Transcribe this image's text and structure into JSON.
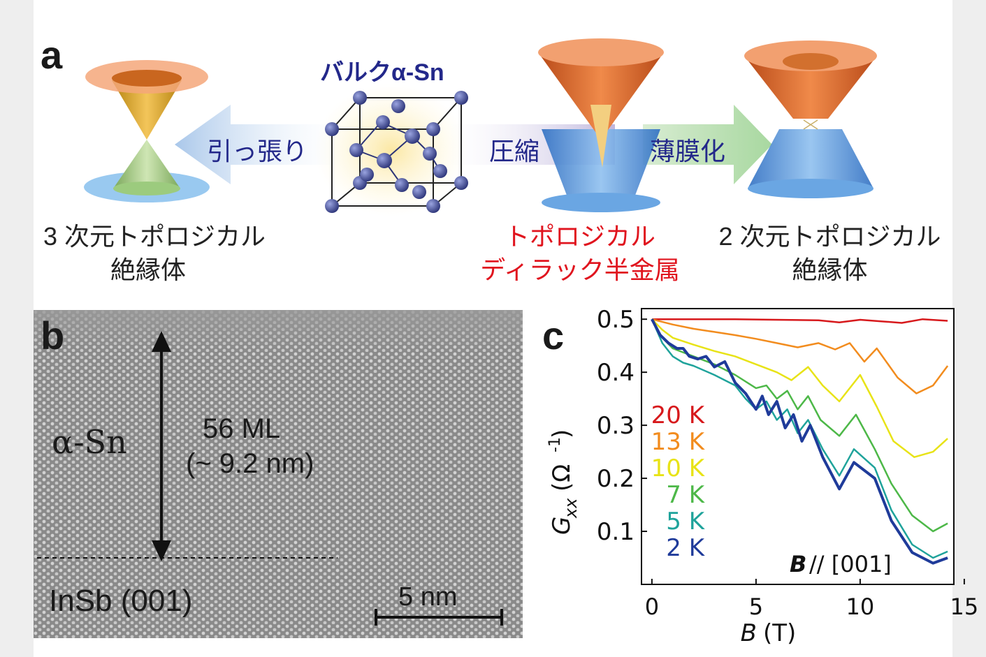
{
  "panel_a": {
    "letter": "a",
    "bulk_title": "バルクα-Sn",
    "arrow_tension": "引っ張り",
    "arrow_compression": "圧縮",
    "arrow_thinfilm": "薄膜化",
    "ti3d_line1": "3 次元トポロジカル",
    "ti3d_line2": "絶縁体",
    "dirac_line1": "トポロジカル",
    "dirac_line2": "ディラック半金属",
    "ti2d_line1": "2 次元トポロジカル",
    "ti2d_line2": "絶縁体",
    "colors": {
      "dirac_text": "#e0141e",
      "bulk_title": "#23288a",
      "arrow_text": "#23288a"
    }
  },
  "panel_b": {
    "letter": "b",
    "layer_label": "α-Sn",
    "thickness_line1": "56 ML",
    "thickness_line2": "(~ 9.2 nm)",
    "substrate_label": "InSb (001)",
    "scalebar_label": "5 nm"
  },
  "panel_c": {
    "letter": "c",
    "field_note": "// [001]",
    "field_note_symbol": "B",
    "chart_data": {
      "type": "line",
      "xlabel_symbol": "B",
      "xlabel_unit": "(T)",
      "ylabel_symbol": "G",
      "ylabel_sub": "xx",
      "ylabel_unit": "(Ω",
      "ylabel_exp": "-1",
      "ylabel_close": ")",
      "xlim": [
        -0.5,
        14.5
      ],
      "ylim": [
        0.0,
        0.52
      ],
      "xticks": [
        "0",
        "5",
        "10",
        "15"
      ],
      "yticks": [
        "0.1",
        "0.2",
        "0.3",
        "0.4",
        "0.5"
      ],
      "series": [
        {
          "name": "20 K",
          "color": "#d7191c",
          "x": [
            0,
            2,
            4,
            6,
            8,
            9,
            10,
            11,
            12,
            13,
            14.2
          ],
          "y": [
            0.5,
            0.5,
            0.5,
            0.499,
            0.498,
            0.494,
            0.499,
            0.496,
            0.493,
            0.5,
            0.497
          ]
        },
        {
          "name": "13 K",
          "color": "#f28c1e",
          "x": [
            0,
            1,
            2,
            3,
            4,
            5,
            6,
            7,
            8,
            8.8,
            9.5,
            10.2,
            10.8,
            11.8,
            12.7,
            13.5,
            14.2
          ],
          "y": [
            0.5,
            0.49,
            0.482,
            0.476,
            0.47,
            0.463,
            0.455,
            0.447,
            0.455,
            0.443,
            0.455,
            0.42,
            0.445,
            0.39,
            0.36,
            0.375,
            0.412
          ]
        },
        {
          "name": "10 K",
          "color": "#e8e317",
          "x": [
            0,
            0.5,
            1,
            2,
            3,
            4,
            5,
            6,
            6.7,
            7.5,
            8.2,
            9,
            10,
            10.8,
            11.6,
            12.6,
            13.5,
            14.2
          ],
          "y": [
            0.5,
            0.48,
            0.465,
            0.452,
            0.44,
            0.43,
            0.415,
            0.4,
            0.385,
            0.41,
            0.375,
            0.345,
            0.395,
            0.335,
            0.27,
            0.24,
            0.25,
            0.275
          ]
        },
        {
          "name": "7 K",
          "color": "#4db848",
          "x": [
            0,
            0.5,
            1,
            2,
            3,
            4,
            5,
            5.5,
            6,
            6.5,
            7,
            7.5,
            8.1,
            9,
            9.8,
            10.7,
            11.5,
            12.5,
            13.5,
            14.2
          ],
          "y": [
            0.5,
            0.465,
            0.445,
            0.43,
            0.415,
            0.395,
            0.37,
            0.375,
            0.35,
            0.365,
            0.33,
            0.355,
            0.31,
            0.28,
            0.32,
            0.255,
            0.19,
            0.13,
            0.1,
            0.115
          ]
        },
        {
          "name": "5 K",
          "color": "#1fa39b",
          "x": [
            0,
            0.5,
            1,
            1.5,
            2,
            3,
            4,
            4.5,
            5,
            5.5,
            6,
            6.5,
            7,
            7.5,
            8.2,
            9,
            9.7,
            10.7,
            11.5,
            12.5,
            13.5,
            14.2
          ],
          "y": [
            0.5,
            0.455,
            0.43,
            0.418,
            0.412,
            0.395,
            0.375,
            0.35,
            0.33,
            0.345,
            0.31,
            0.33,
            0.285,
            0.31,
            0.255,
            0.205,
            0.255,
            0.22,
            0.14,
            0.075,
            0.05,
            0.062
          ]
        },
        {
          "name": "2 K",
          "color": "#1f3b9a",
          "x": [
            0,
            0.4,
            0.8,
            1.2,
            1.5,
            1.8,
            2.2,
            2.6,
            3,
            3.5,
            4,
            4.5,
            5,
            5.3,
            5.6,
            6,
            6.4,
            6.8,
            7.2,
            7.6,
            8.2,
            9,
            9.7,
            10.7,
            11.5,
            12.5,
            13.5,
            14.2
          ],
          "y": [
            0.5,
            0.47,
            0.455,
            0.445,
            0.445,
            0.43,
            0.425,
            0.43,
            0.41,
            0.42,
            0.38,
            0.36,
            0.33,
            0.355,
            0.32,
            0.345,
            0.295,
            0.32,
            0.27,
            0.3,
            0.24,
            0.18,
            0.23,
            0.2,
            0.12,
            0.06,
            0.04,
            0.05
          ]
        }
      ]
    }
  }
}
